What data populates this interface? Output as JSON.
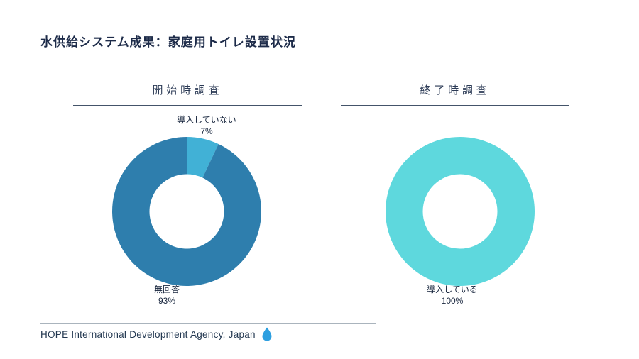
{
  "page": {
    "title": "水供給システム成果：家庭用トイレ設置状況",
    "footer": "HOPE International Development Agency, Japan"
  },
  "colors": {
    "title_text": "#1d2b49",
    "chart_title_text": "#2b3a55",
    "title_underline": "#44546a",
    "footer_divider": "#aab4bd",
    "droplet": "#2d9fe0"
  },
  "chart_data": [
    {
      "type": "pie",
      "subtype": "donut",
      "title": "開始時調査",
      "labels": [
        "導入していない",
        "無回答"
      ],
      "values": [
        7,
        93
      ],
      "value_labels": [
        "7%",
        "93%"
      ],
      "colors": [
        "#41b1d6",
        "#2e7ead"
      ],
      "hole_ratio": 0.5,
      "start_angle_deg": 0,
      "direction": "clockwise",
      "legend_position": "none",
      "label_position": "outside"
    },
    {
      "type": "pie",
      "subtype": "donut",
      "title": "終了時調査",
      "labels": [
        "導入している"
      ],
      "values": [
        100
      ],
      "value_labels": [
        "100%"
      ],
      "colors": [
        "#5ed8dd"
      ],
      "hole_ratio": 0.5,
      "start_angle_deg": 0,
      "direction": "clockwise",
      "legend_position": "none",
      "label_position": "outside"
    }
  ]
}
